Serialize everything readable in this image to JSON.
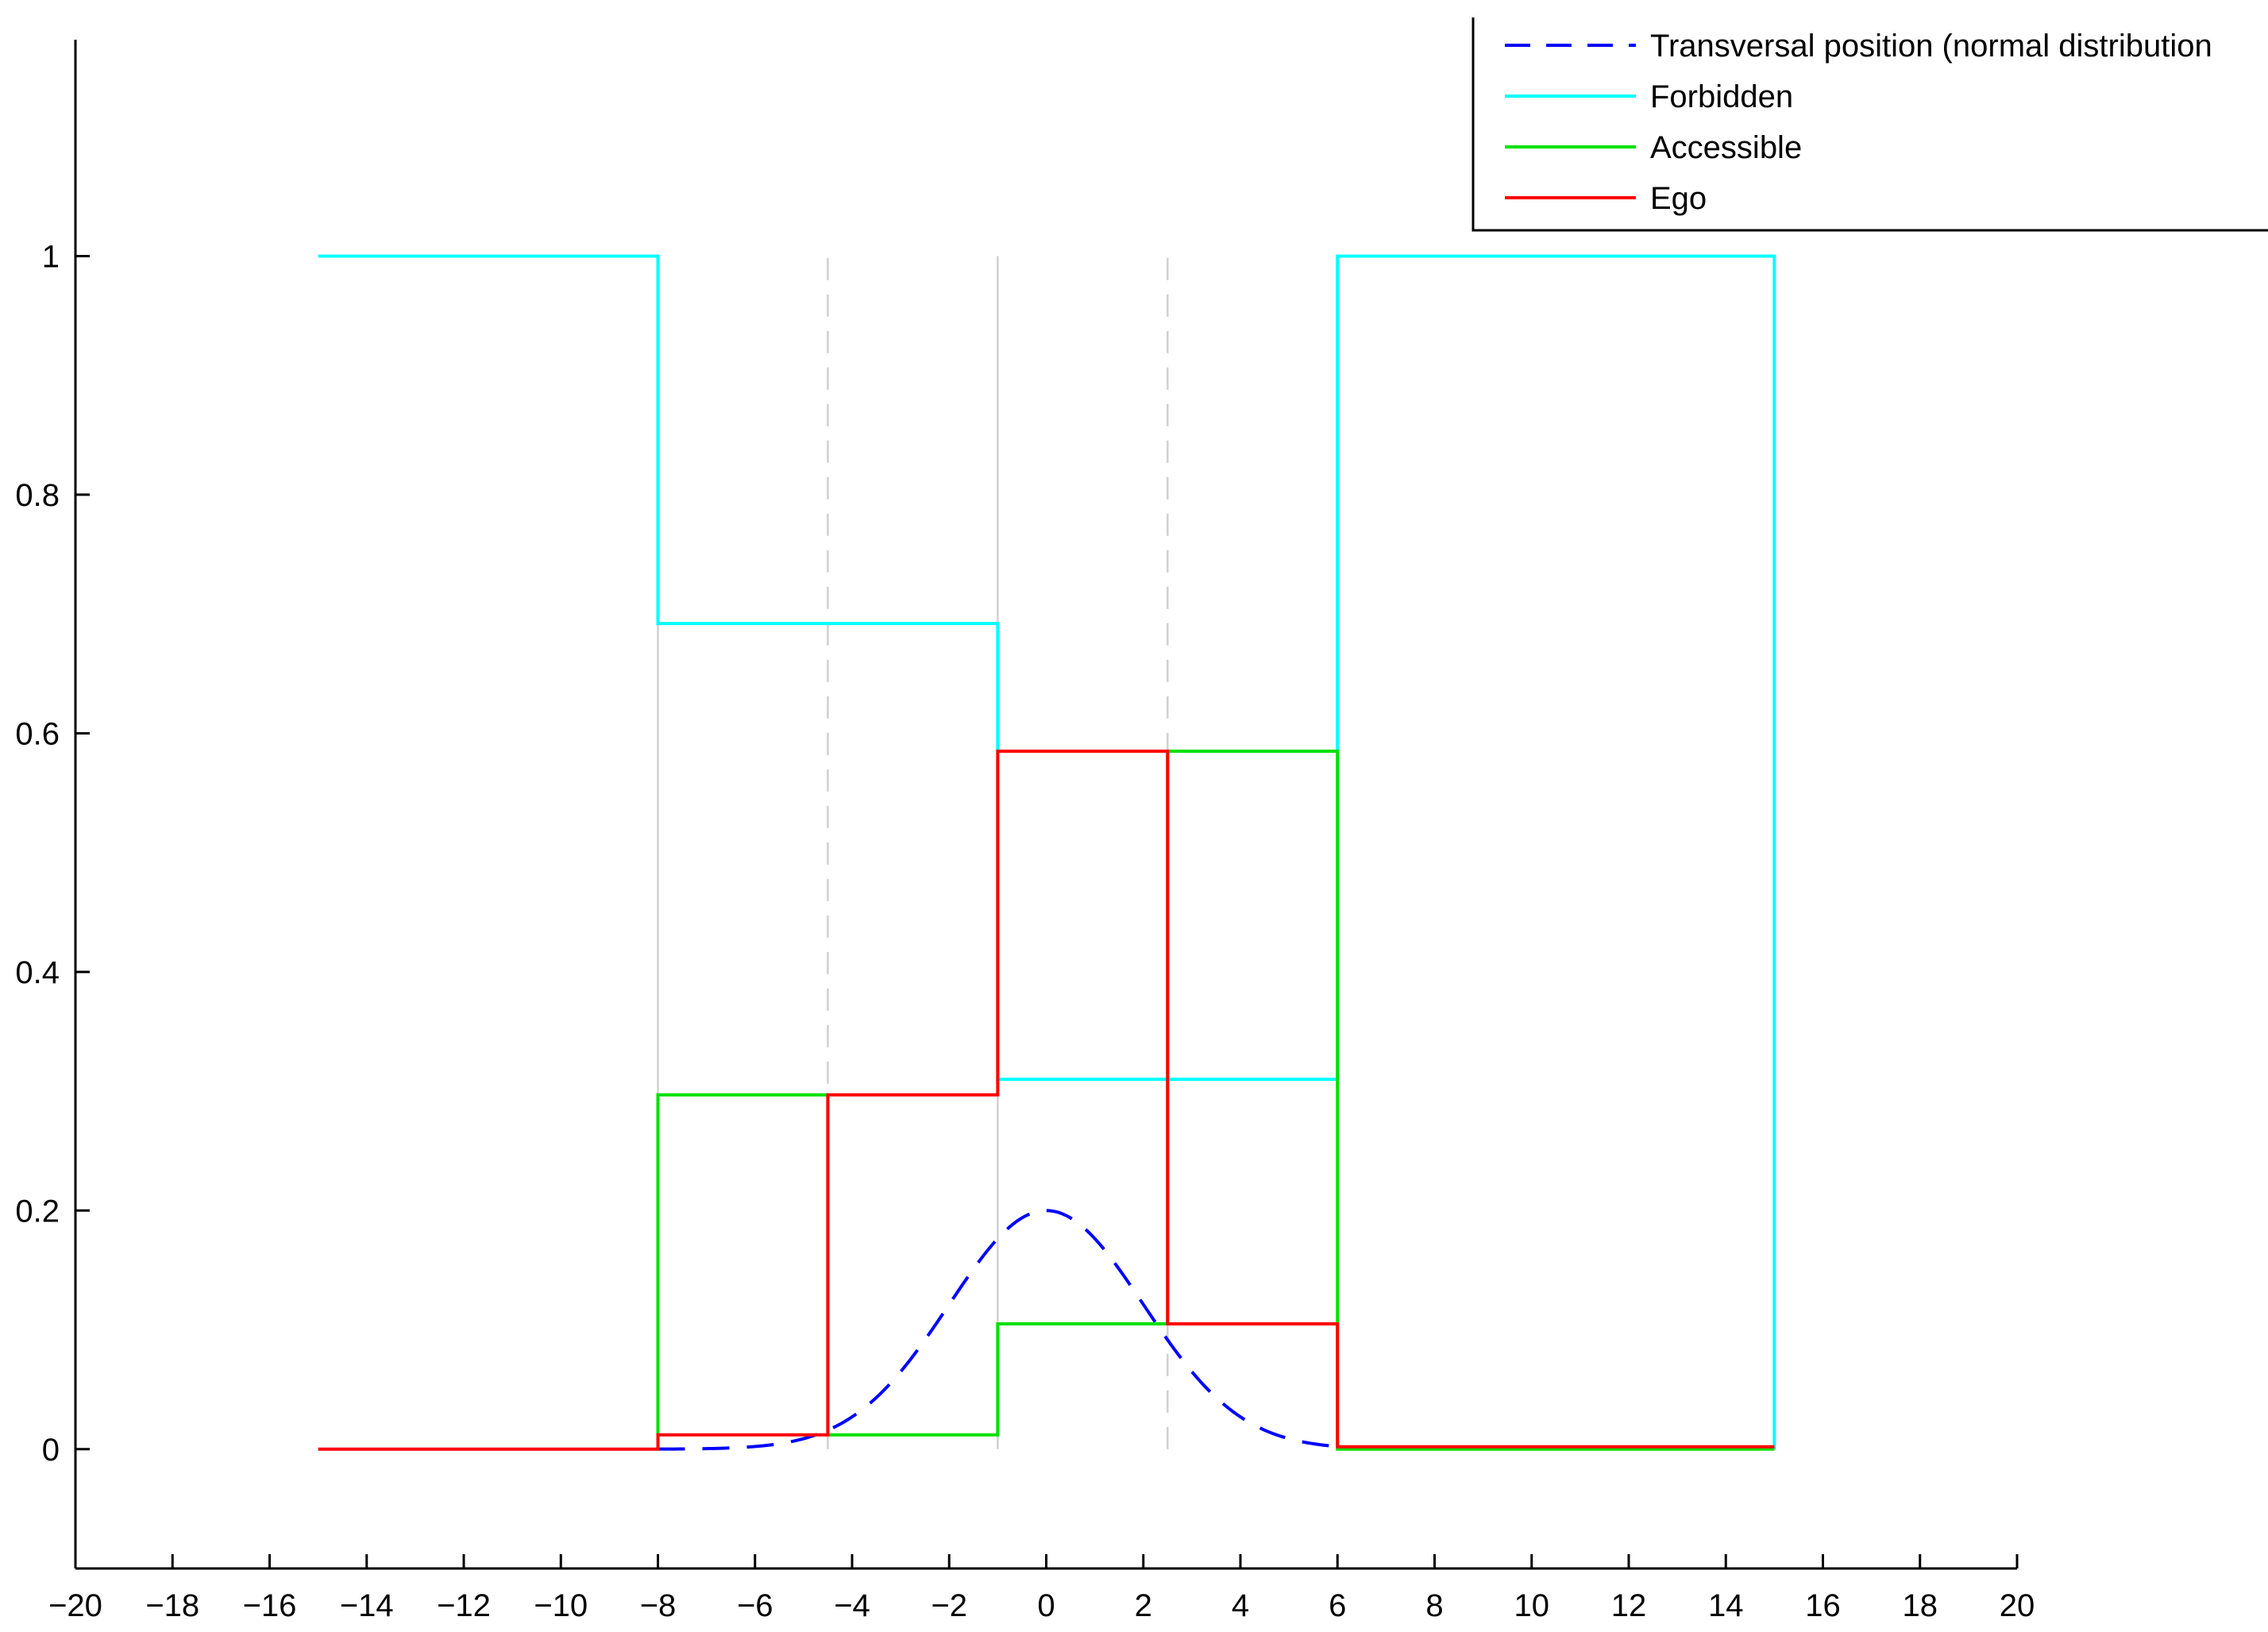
{
  "chart_data": {
    "type": "line",
    "title": "",
    "xlabel": "",
    "ylabel": "",
    "xlim": [
      -20,
      20
    ],
    "ylim": [
      -0.1,
      1.2
    ],
    "x_ticks": [
      -20,
      -18,
      -16,
      -14,
      -12,
      -10,
      -8,
      -6,
      -4,
      -2,
      0,
      2,
      4,
      6,
      8,
      10,
      12,
      14,
      16,
      18,
      20
    ],
    "x_tick_labels": [
      "−20",
      "−18",
      "−16",
      "−14",
      "−12",
      "−10",
      "−8",
      "−6",
      "−4",
      "−2",
      "0",
      "2",
      "4",
      "6",
      "8",
      "10",
      "12",
      "14",
      "16",
      "18",
      "20"
    ],
    "y_ticks": [
      0,
      0.2,
      0.4,
      0.6,
      0.8,
      1
    ],
    "y_tick_labels": [
      "0",
      "0.2",
      "0.4",
      "0.6",
      "0.8",
      "1"
    ],
    "grid": false,
    "legend_position": "top-right",
    "reference_lines": [
      {
        "x": -8,
        "style": "solid",
        "color": "#d0d0d0",
        "y_range": [
          0,
          1
        ]
      },
      {
        "x": -4.5,
        "style": "dashed",
        "color": "#d0d0d0",
        "y_range": [
          0,
          1
        ]
      },
      {
        "x": -1,
        "style": "solid",
        "color": "#d0d0d0",
        "y_range": [
          0,
          1
        ]
      },
      {
        "x": 2.5,
        "style": "dashed",
        "color": "#d0d0d0",
        "y_range": [
          0,
          1
        ]
      }
    ],
    "series": [
      {
        "name": "Transversal position (normal distribution",
        "style": "dashed",
        "color": "#0000ff",
        "gaussian": {
          "mean": 0,
          "std": 2,
          "peak": 0.2
        },
        "x_range": [
          -8,
          6
        ]
      },
      {
        "name": "Forbidden",
        "style": "solid",
        "color": "#00ffff",
        "x": [
          -15,
          -8,
          -8,
          -1,
          -1,
          6,
          6,
          15,
          15
        ],
        "y": [
          1,
          1,
          0.692,
          0.692,
          0.31,
          0.31,
          1,
          1,
          0
        ]
      },
      {
        "name": "Accessible",
        "style": "solid",
        "color": "#00e000",
        "x": [
          -8,
          -8,
          -4.5,
          -4.5,
          -1,
          -1,
          2.5,
          2.5,
          6,
          6,
          15
        ],
        "y": [
          0,
          0.297,
          0.297,
          0.012,
          0.012,
          0.105,
          0.105,
          0.585,
          0.585,
          0,
          0
        ]
      },
      {
        "name": "Ego",
        "style": "solid",
        "color": "#ff0000",
        "x": [
          -15,
          -8,
          -8,
          -4.5,
          -4.5,
          -1,
          -1,
          2.5,
          2.5,
          6,
          6,
          15
        ],
        "y": [
          0,
          0,
          0.012,
          0.012,
          0.297,
          0.297,
          0.585,
          0.585,
          0.105,
          0.105,
          0.002,
          0.002
        ]
      }
    ]
  }
}
